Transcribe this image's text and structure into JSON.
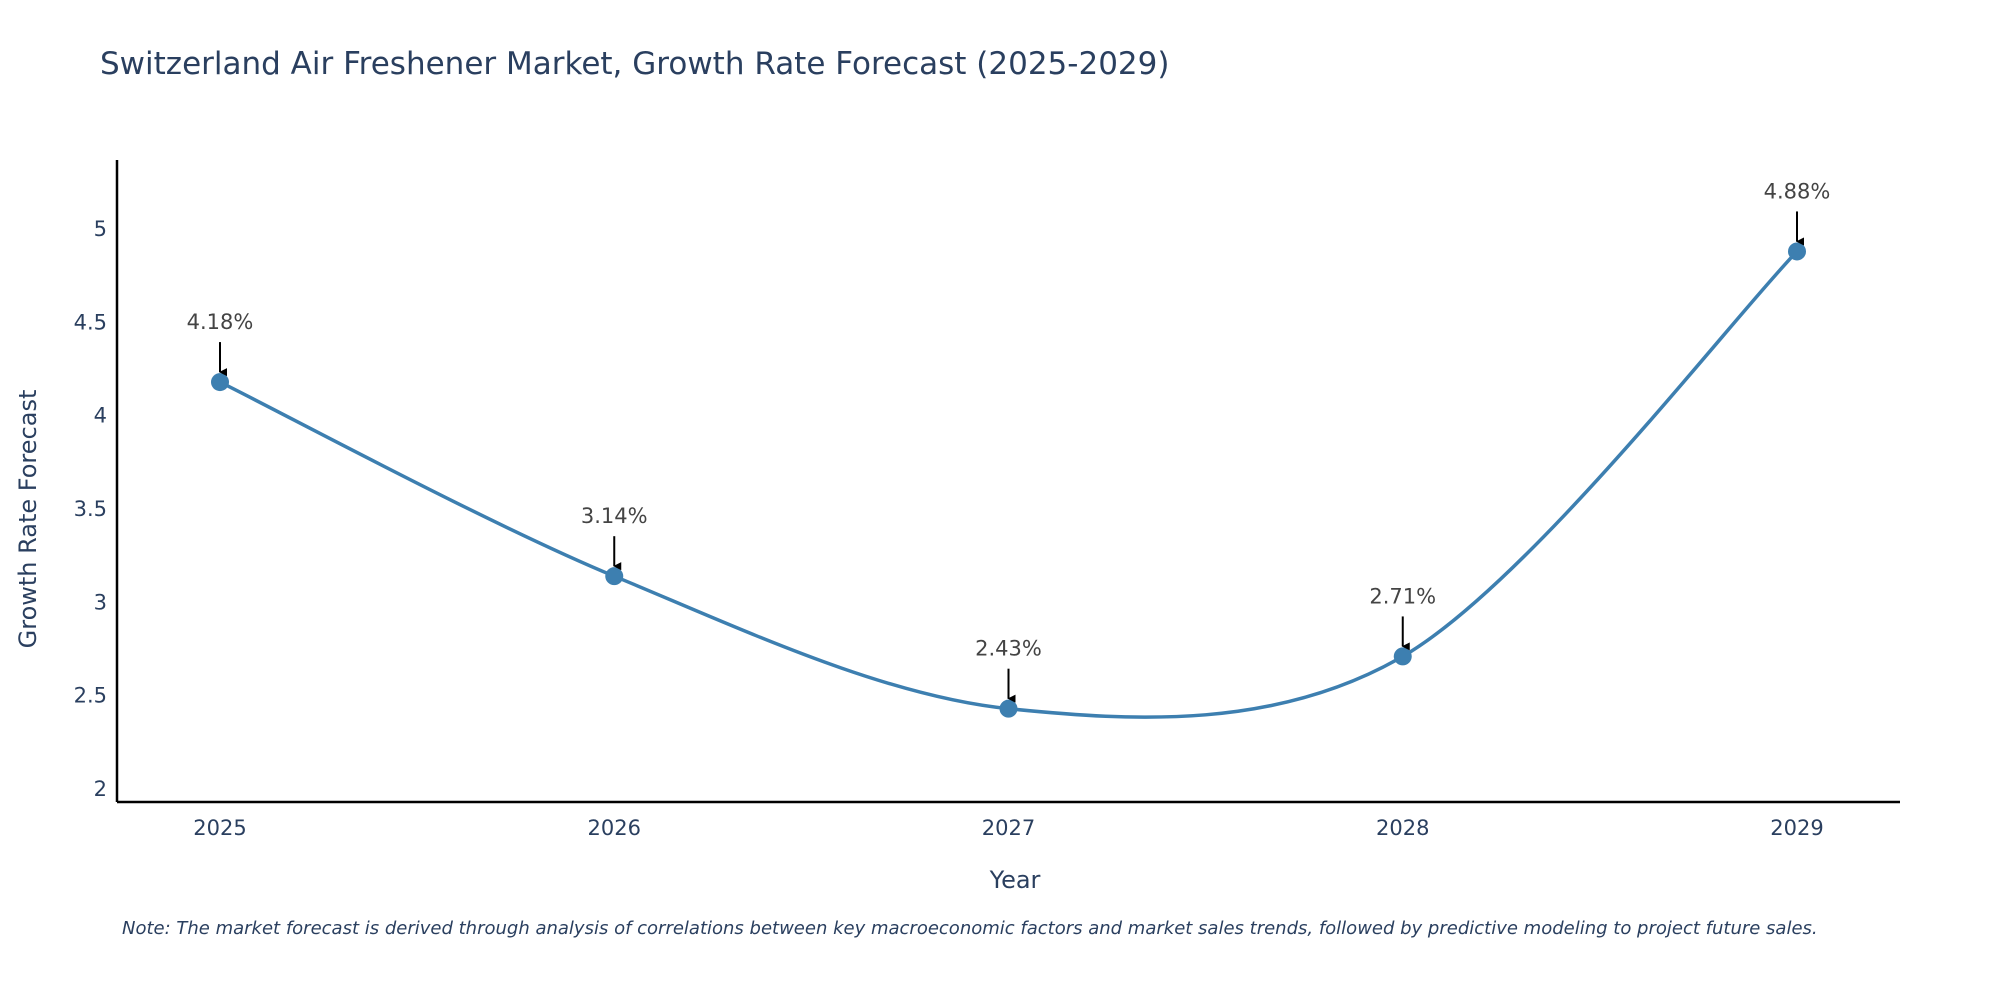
{
  "chart_data": {
    "type": "line",
    "title": "Switzerland Air Freshener Market, Growth Rate Forecast (2025-2029)",
    "xlabel": "Year",
    "ylabel": "Growth Rate Forecast",
    "categories": [
      "2025",
      "2026",
      "2027",
      "2028",
      "2029"
    ],
    "values": [
      4.18,
      3.14,
      2.43,
      2.71,
      4.88
    ],
    "data_labels": [
      "4.18%",
      "3.14%",
      "2.43%",
      "2.71%",
      "4.88%"
    ],
    "y_ticks": [
      2,
      2.5,
      3,
      3.5,
      4,
      4.5,
      5
    ],
    "y_tick_labels": [
      "2",
      "2.5",
      "3",
      "3.5",
      "4",
      "4.5",
      "5"
    ],
    "ylim": [
      1.93,
      5.37
    ],
    "grid": false,
    "line_color": "#3d7fb0",
    "marker_color": "#3d7fb0",
    "annotation_color": "#000000"
  },
  "note": "Note: The market forecast is derived through analysis of correlations between key macroeconomic factors and market sales trends, followed by predictive modeling to project future sales."
}
